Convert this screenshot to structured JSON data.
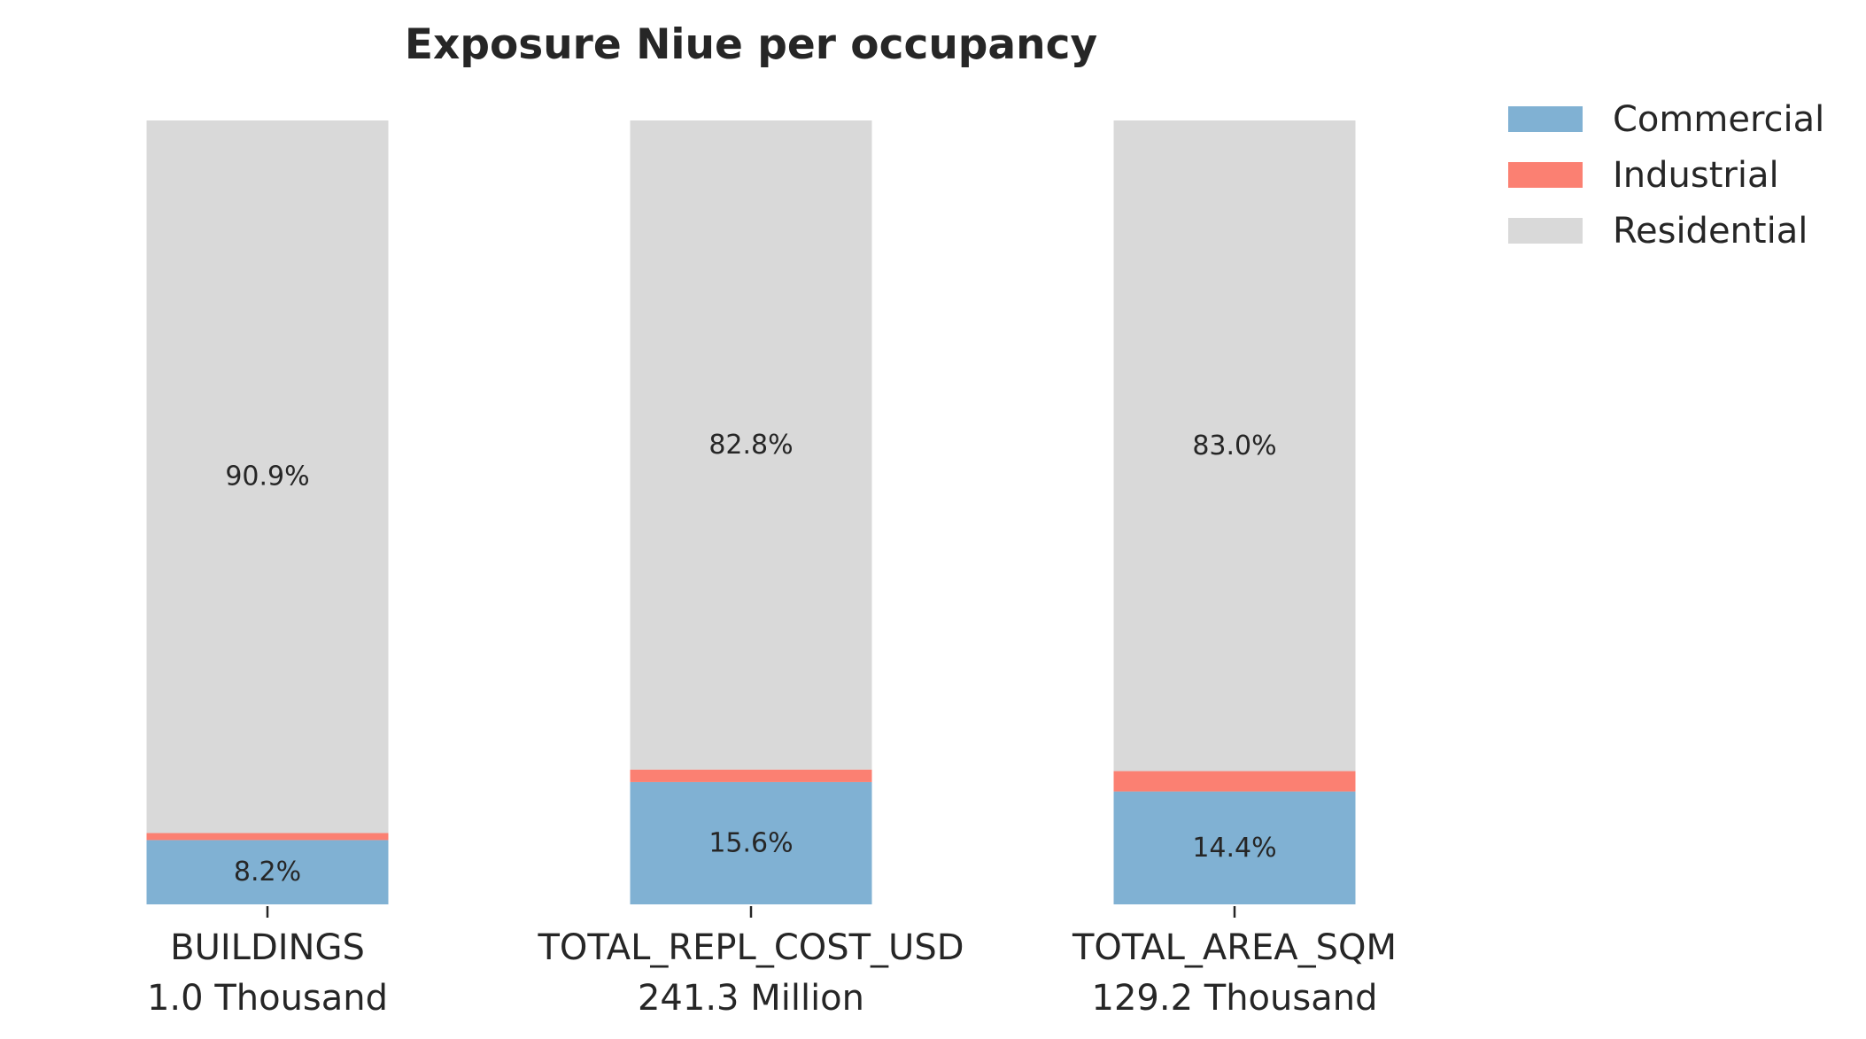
{
  "chart_data": {
    "type": "bar",
    "stacked": true,
    "normalized": true,
    "title": "Exposure Niue per occupancy",
    "xlabel": "",
    "ylabel": "",
    "ylim": [
      0,
      100
    ],
    "grid": false,
    "legend_position": "top-right",
    "categories": [
      {
        "name": "BUILDINGS",
        "total": "1.0 Thousand"
      },
      {
        "name": "TOTAL_REPL_COST_USD",
        "total": "241.3 Million"
      },
      {
        "name": "TOTAL_AREA_SQM",
        "total": "129.2 Thousand"
      }
    ],
    "series": [
      {
        "name": "Commercial",
        "color": "#80b1d3",
        "values": [
          8.2,
          15.6,
          14.4
        ],
        "labels": [
          "8.2%",
          "15.6%",
          "14.4%"
        ]
      },
      {
        "name": "Industrial",
        "color": "#fb8072",
        "values": [
          0.9,
          1.6,
          2.6
        ],
        "labels": [
          "",
          "",
          ""
        ]
      },
      {
        "name": "Residential",
        "color": "#d9d9d9",
        "values": [
          90.9,
          82.8,
          83.0
        ],
        "labels": [
          "90.9%",
          "82.8%",
          "83.0%"
        ]
      }
    ]
  }
}
